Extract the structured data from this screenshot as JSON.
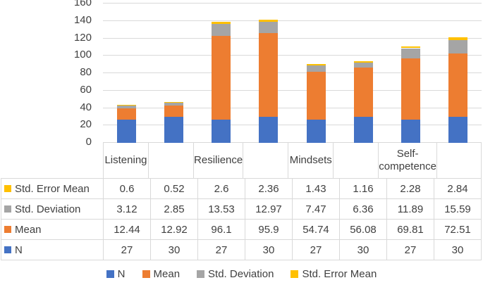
{
  "colors": {
    "n": "#4472C4",
    "mean": "#ED7D31",
    "std_deviation": "#A5A5A5",
    "std_error_mean": "#FFC000",
    "gridline": "#d9d9d9",
    "text": "#404040"
  },
  "chart_data": {
    "type": "bar",
    "stacked": true,
    "categories": [
      "Listening",
      "Resilience",
      "Mindsets",
      "Self-competence"
    ],
    "bars_per_category": 2,
    "series": [
      {
        "name": "N",
        "color": "#4472C4",
        "values": [
          27,
          30,
          27,
          30,
          27,
          30,
          27,
          30
        ]
      },
      {
        "name": "Mean",
        "color": "#ED7D31",
        "values": [
          12.44,
          12.92,
          96.1,
          95.9,
          54.74,
          56.08,
          69.81,
          72.51
        ]
      },
      {
        "name": "Std. Deviation",
        "color": "#A5A5A5",
        "values": [
          3.12,
          2.85,
          13.53,
          12.97,
          7.47,
          6.36,
          11.89,
          15.59
        ]
      },
      {
        "name": "Std. Error Mean",
        "color": "#FFC000",
        "values": [
          0.6,
          0.52,
          2.6,
          2.36,
          1.43,
          1.16,
          2.28,
          2.84
        ]
      }
    ],
    "title": "",
    "xlabel": "",
    "ylabel": "",
    "y_ticks": [
      0,
      20,
      40,
      60,
      80,
      100,
      120,
      140,
      160
    ],
    "ylim": [
      0,
      160
    ],
    "grid": true,
    "legend_position": "bottom"
  },
  "table": {
    "rows": [
      {
        "label": "Std. Error Mean",
        "color": "#FFC000",
        "values": [
          "0.6",
          "0.52",
          "2.6",
          "2.36",
          "1.43",
          "1.16",
          "2.28",
          "2.84"
        ]
      },
      {
        "label": "Std. Deviation",
        "color": "#A5A5A5",
        "values": [
          "3.12",
          "2.85",
          "13.53",
          "12.97",
          "7.47",
          "6.36",
          "11.89",
          "15.59"
        ]
      },
      {
        "label": "Mean",
        "color": "#ED7D31",
        "values": [
          "12.44",
          "12.92",
          "96.1",
          "95.9",
          "54.74",
          "56.08",
          "69.81",
          "72.51"
        ]
      },
      {
        "label": "N",
        "color": "#4472C4",
        "values": [
          "27",
          "30",
          "27",
          "30",
          "27",
          "30",
          "27",
          "30"
        ]
      }
    ]
  },
  "legend": {
    "items": [
      {
        "label": "N",
        "color": "#4472C4"
      },
      {
        "label": "Mean",
        "color": "#ED7D31"
      },
      {
        "label": "Std. Deviation",
        "color": "#A5A5A5"
      },
      {
        "label": "Std. Error Mean",
        "color": "#FFC000"
      }
    ]
  }
}
